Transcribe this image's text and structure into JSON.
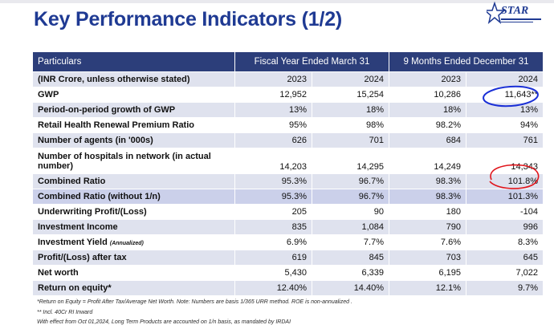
{
  "title": "Key Performance Indicators (1/2)",
  "logo": {
    "name": "STAR"
  },
  "table": {
    "header": {
      "particulars": "Particulars",
      "group1": "Fiscal Year Ended March 31",
      "group2": "9 Months Ended December 31"
    },
    "rows": [
      {
        "label": "(INR Crore, unless otherwise stated)",
        "values": [
          "2023",
          "2024",
          "2023",
          "2024"
        ]
      },
      {
        "label": "GWP",
        "values": [
          "12,952",
          "15,254",
          "10,286",
          "11,643**"
        ]
      },
      {
        "label": "Period-on-period growth of GWP",
        "values": [
          "13%",
          "18%",
          "18%",
          "13%"
        ]
      },
      {
        "label": "Retail Health Renewal Premium Ratio",
        "values": [
          "95%",
          "98%",
          "98.2%",
          "94%"
        ]
      },
      {
        "label": "Number of agents (in '000s)",
        "values": [
          "626",
          "701",
          "684",
          "761"
        ]
      },
      {
        "label": "Number of hospitals in network (in actual number)",
        "values": [
          "14,203",
          "14,295",
          "14,249",
          "14,343"
        ]
      },
      {
        "label": "Combined Ratio",
        "values": [
          "95.3%",
          "96.7%",
          "98.3%",
          "101.8%"
        ]
      },
      {
        "label": "Combined Ratio (without 1/n)",
        "values": [
          "95.3%",
          "96.7%",
          "98.3%",
          "101.3%"
        ]
      },
      {
        "label": "Underwriting Profit/(Loss)",
        "values": [
          "205",
          "90",
          "180",
          "-104"
        ]
      },
      {
        "label": "Investment Income",
        "values": [
          "835",
          "1,084",
          "790",
          "996"
        ]
      },
      {
        "label": "Investment Yield",
        "label_note": "(Annualized)",
        "values": [
          "6.9%",
          "7.7%",
          "7.6%",
          "8.3%"
        ]
      },
      {
        "label": "Profit/(Loss) after tax",
        "values": [
          "619",
          "845",
          "703",
          "645"
        ]
      },
      {
        "label": "Net worth",
        "values": [
          "5,430",
          "6,339",
          "6,195",
          "7,022"
        ]
      },
      {
        "label": "Return on equity*",
        "values": [
          "12.40%",
          "14.40%",
          "12.1%",
          "9.7%"
        ]
      }
    ]
  },
  "notes": {
    "n1": "*Return on Equity = Profit After Tax/Average Net Worth. Note: Numbers are basis 1/365 URR method. ROE is non-annualized .",
    "n2": "** Incl. 40Cr RI Inward",
    "n3": "With effect from Oct 01,2024, Long Term Products are accounted on 1/n basis, as mandated by IRDAI"
  },
  "annotation_colors": {
    "blue_circle": "#1a2fd6",
    "red_circle": "#e0151b"
  }
}
